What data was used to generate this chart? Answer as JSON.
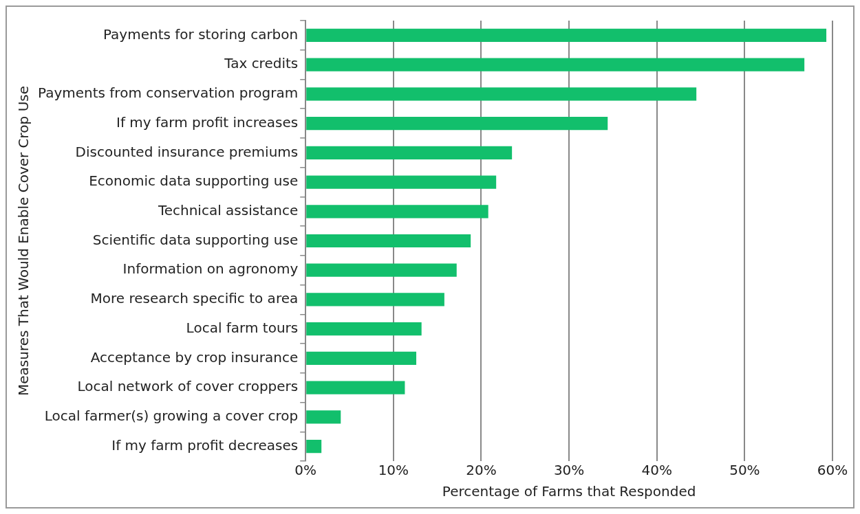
{
  "chart_data": {
    "type": "bar",
    "orientation": "horizontal",
    "xlabel": "Percentage of Farms that Responded",
    "ylabel": "Measures That Would Enable Cover Crop Use",
    "categories": [
      "Payments for storing carbon",
      "Tax credits",
      "Payments from conservation program",
      "If my farm profit increases",
      "Discounted insurance premiums",
      "Economic data supporting use",
      "Technical assistance",
      "Scientific data supporting use",
      "Information on agronomy",
      "More research specific to area",
      "Local farm tours",
      "Acceptance by crop insurance",
      "Local network of cover croppers",
      "Local farmer(s) growing a cover crop",
      "If my farm profit decreases"
    ],
    "values": [
      59.3,
      56.8,
      44.5,
      34.4,
      23.5,
      21.7,
      20.8,
      18.8,
      17.2,
      15.8,
      13.2,
      12.6,
      11.3,
      4.0,
      1.8
    ],
    "color": "#12bf6c",
    "xlim": [
      0,
      60
    ],
    "xticks": [
      {
        "value": 0,
        "label": "0%"
      },
      {
        "value": 10,
        "label": "10%"
      },
      {
        "value": 20,
        "label": "20%"
      },
      {
        "value": 30,
        "label": "30%"
      },
      {
        "value": 40,
        "label": "40%"
      },
      {
        "value": 50,
        "label": "50%"
      },
      {
        "value": 60,
        "label": "60%"
      }
    ],
    "grid": "x",
    "legend": false
  }
}
